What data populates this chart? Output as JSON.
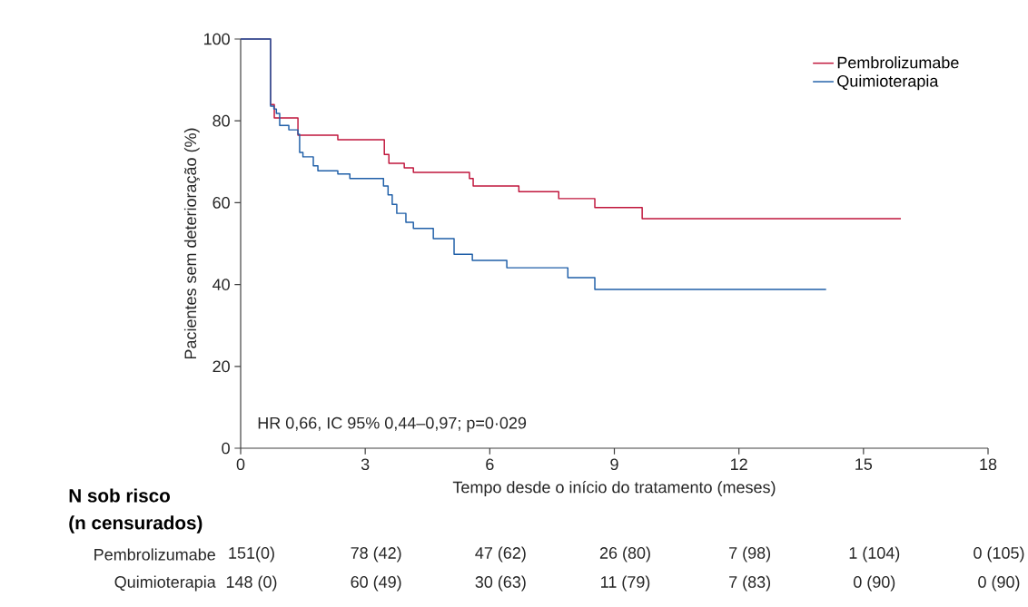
{
  "chart_data": {
    "type": "step",
    "xlabel": "Tempo desde o início do tratamento (meses)",
    "ylabel": "Pacientes sem deterioração (%)",
    "xlim": [
      0,
      18
    ],
    "xticks": [
      0,
      3,
      6,
      9,
      12,
      15,
      18
    ],
    "ylim": [
      0,
      100
    ],
    "yticks": [
      0,
      20,
      40,
      60,
      80,
      100
    ],
    "grid": false,
    "legend": "top right",
    "series": [
      {
        "name": "Pembrolizumabe",
        "color": "#c0163c",
        "x": [
          0,
          0.72,
          0.81,
          1.38,
          2.34,
          3.46,
          3.57,
          3.94,
          4.16,
          5.51,
          5.6,
          6.7,
          7.66,
          8.53,
          9.67,
          15.9
        ],
        "values": [
          100,
          84,
          80.7,
          76.5,
          75.4,
          71.8,
          69.6,
          68.5,
          67.4,
          65.9,
          64.1,
          62.7,
          61.0,
          58.8,
          56.1,
          56.1
        ]
      },
      {
        "name": "Quimioterapia",
        "color": "#1f5fa8",
        "x": [
          0,
          0.72,
          0.8,
          0.86,
          0.94,
          1.16,
          1.38,
          1.42,
          1.5,
          1.75,
          1.86,
          2.34,
          2.63,
          3.44,
          3.55,
          3.65,
          3.76,
          3.98,
          4.16,
          4.64,
          5.14,
          5.58,
          6.41,
          7.88,
          8.53,
          14.1
        ],
        "values": [
          100,
          83.6,
          82.9,
          81.8,
          78.9,
          77.8,
          76.7,
          72.3,
          71.2,
          69.0,
          67.8,
          67.0,
          65.9,
          64.1,
          61.9,
          59.6,
          57.4,
          55.2,
          53.7,
          51.2,
          47.4,
          45.9,
          44.1,
          41.7,
          38.8,
          38.8
        ]
      }
    ],
    "annotations": [
      "HR 0,66, IC 95% 0,44–0,97; p=0·029",
      "N sob risco",
      "(n censurados)",
      "Pembrolizumabe",
      "151(0)",
      "78 (42)",
      "47 (62)",
      "26 (80)",
      "7 (98)",
      "1 (104)",
      "0 (105)",
      "Quimioterapia",
      "148 (0)",
      "60 (49)",
      "30 (63)",
      "11 (79)",
      "7 (83)",
      "0 (90)",
      "0 (90)"
    ]
  }
}
